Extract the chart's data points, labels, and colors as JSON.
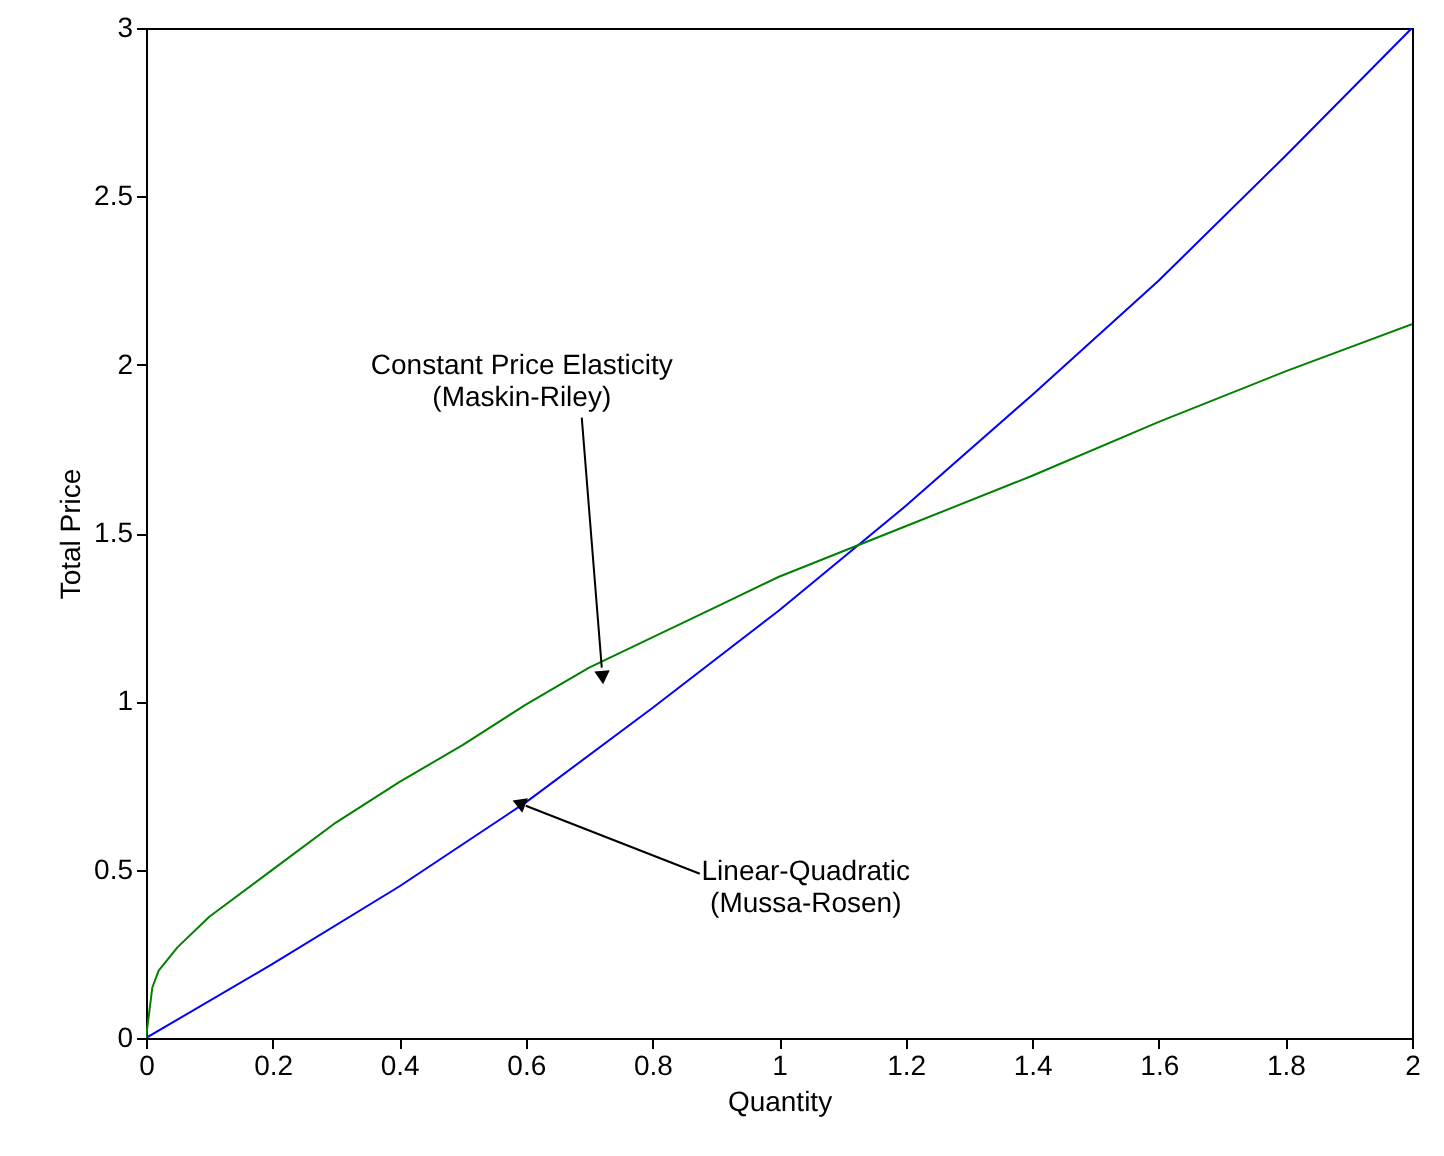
{
  "chart_data": {
    "type": "line",
    "xlabel": "Quantity",
    "ylabel": "Total Price",
    "xlim": [
      0,
      2
    ],
    "ylim": [
      0,
      3
    ],
    "xticks": [
      {
        "value": 0,
        "label": "0"
      },
      0.2,
      0.4,
      0.6,
      0.8,
      {
        "value": 1,
        "label": "1"
      },
      1.2,
      1.4,
      1.6,
      1.8,
      {
        "value": 2,
        "label": "2"
      }
    ],
    "yticks": [
      {
        "value": 0,
        "label": "0"
      },
      0.5,
      {
        "value": 1,
        "label": "1"
      },
      1.5,
      {
        "value": 2,
        "label": "2"
      },
      2.5,
      {
        "value": 3,
        "label": "3"
      }
    ],
    "grid": false,
    "marker": "none",
    "line_style": "solid",
    "series": [
      {
        "color": "#0000ff",
        "x": [
          0,
          0.2,
          0.4,
          0.6,
          0.8,
          1.0,
          1.2,
          1.4,
          1.6,
          1.8,
          2.0
        ],
        "values": [
          0,
          0.22,
          0.45,
          0.7,
          0.98,
          1.27,
          1.58,
          1.91,
          2.25,
          2.62,
          3.0
        ]
      },
      {
        "color": "#008000",
        "x": [
          0,
          0.01,
          0.02,
          0.05,
          0.1,
          0.2,
          0.3,
          0.4,
          0.5,
          0.6,
          0.7,
          0.8,
          0.9,
          1.0,
          1.2,
          1.4,
          1.6,
          1.8,
          2.0
        ],
        "values": [
          0,
          0.15,
          0.2,
          0.27,
          0.36,
          0.5,
          0.64,
          0.76,
          0.87,
          0.99,
          1.1,
          1.19,
          1.28,
          1.37,
          1.52,
          1.67,
          1.83,
          1.98,
          2.12
        ]
      }
    ],
    "annotations": [
      {
        "text": "Constant Price Elasticity\n(Maskin-Riley)",
        "x": 0.72,
        "y": 1.1
      },
      {
        "text": "Linear-Quadratic\n(Mussa-Rosen)",
        "x": 0.6,
        "y": 0.69
      }
    ]
  }
}
